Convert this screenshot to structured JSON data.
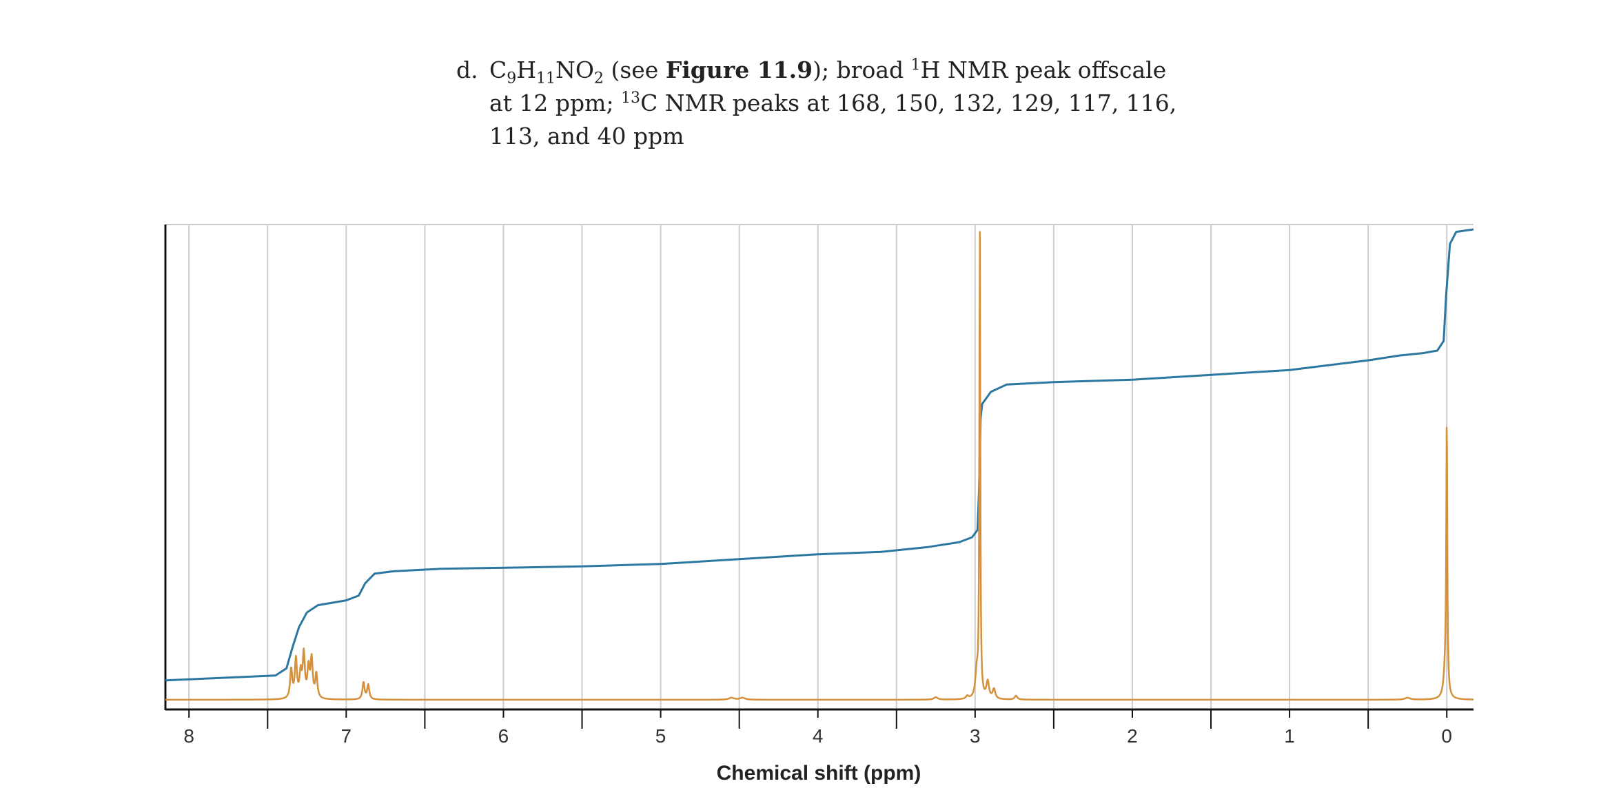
{
  "problem": {
    "marker": "d.",
    "text": {
      "c": "C",
      "c_sub": "9",
      "h": "H",
      "h_sub": "11",
      "no": "NO",
      "no_sub": "2",
      "see_open": " (see ",
      "figure_ref": "Figure 11.9",
      "after_ref": "); broad ",
      "h_mass": "1",
      "h_nmr": "H NMR peak offscale at 12 ppm; ",
      "c_mass": "13",
      "c_nmr": "C NMR peaks at 168, 150, 132, 129, 117, 116, 113, and 40 ppm"
    }
  },
  "chart_data": {
    "type": "line",
    "xlabel": "Chemical shift (ppm)",
    "ylabel": "",
    "xlim": [
      8.15,
      -0.17
    ],
    "x_reversed": true,
    "ylim": [
      0,
      1
    ],
    "grid": true,
    "major_ticks": [
      8,
      7,
      6,
      5,
      4,
      3,
      2,
      1,
      0
    ],
    "tick_labels": [
      "8",
      "7",
      "6",
      "5",
      "4",
      "3",
      "2",
      "1",
      "0"
    ],
    "minor_ticks": [
      7.5,
      6.5,
      5.5,
      4.5,
      3.5,
      2.5,
      1.5,
      0.5
    ],
    "colors": {
      "spectrum": "#d4903a",
      "integral": "#2b77a0",
      "grid": "#cccccc",
      "axis": "#111111"
    },
    "series": [
      {
        "role": "spectrum",
        "baseline": 0.02,
        "peaks": [
          {
            "ppm": 7.35,
            "height": 0.06,
            "width": 0.008
          },
          {
            "ppm": 7.32,
            "height": 0.08,
            "width": 0.008
          },
          {
            "ppm": 7.29,
            "height": 0.05,
            "width": 0.008
          },
          {
            "ppm": 7.27,
            "height": 0.09,
            "width": 0.008
          },
          {
            "ppm": 7.24,
            "height": 0.06,
            "width": 0.008
          },
          {
            "ppm": 7.22,
            "height": 0.08,
            "width": 0.008
          },
          {
            "ppm": 7.19,
            "height": 0.05,
            "width": 0.008
          },
          {
            "ppm": 6.89,
            "height": 0.035,
            "width": 0.008
          },
          {
            "ppm": 6.86,
            "height": 0.03,
            "width": 0.008
          },
          {
            "ppm": 4.55,
            "height": 0.004,
            "width": 0.02
          },
          {
            "ppm": 4.48,
            "height": 0.004,
            "width": 0.02
          },
          {
            "ppm": 3.25,
            "height": 0.005,
            "width": 0.015
          },
          {
            "ppm": 3.05,
            "height": 0.006,
            "width": 0.01
          },
          {
            "ppm": 2.97,
            "height": 0.96,
            "width": 0.0035
          },
          {
            "ppm": 2.99,
            "height": 0.05,
            "width": 0.01
          },
          {
            "ppm": 2.92,
            "height": 0.035,
            "width": 0.01
          },
          {
            "ppm": 2.88,
            "height": 0.02,
            "width": 0.01
          },
          {
            "ppm": 2.74,
            "height": 0.008,
            "width": 0.01
          },
          {
            "ppm": 0.25,
            "height": 0.004,
            "width": 0.02
          },
          {
            "ppm": 0.0,
            "height": 0.55,
            "width": 0.004
          },
          {
            "ppm": 0.01,
            "height": 0.05,
            "width": 0.012
          }
        ]
      },
      {
        "role": "integral",
        "points": [
          [
            8.15,
            0.06
          ],
          [
            7.45,
            0.07
          ],
          [
            7.38,
            0.085
          ],
          [
            7.34,
            0.13
          ],
          [
            7.3,
            0.17
          ],
          [
            7.25,
            0.2
          ],
          [
            7.18,
            0.215
          ],
          [
            7.0,
            0.225
          ],
          [
            6.92,
            0.235
          ],
          [
            6.88,
            0.26
          ],
          [
            6.82,
            0.28
          ],
          [
            6.7,
            0.285
          ],
          [
            6.4,
            0.29
          ],
          [
            5.5,
            0.295
          ],
          [
            5.0,
            0.3
          ],
          [
            4.5,
            0.31
          ],
          [
            4.0,
            0.32
          ],
          [
            3.6,
            0.325
          ],
          [
            3.3,
            0.335
          ],
          [
            3.1,
            0.345
          ],
          [
            3.02,
            0.355
          ],
          [
            2.985,
            0.37
          ],
          [
            2.975,
            0.45
          ],
          [
            2.965,
            0.6
          ],
          [
            2.955,
            0.63
          ],
          [
            2.9,
            0.655
          ],
          [
            2.8,
            0.67
          ],
          [
            2.5,
            0.675
          ],
          [
            2.0,
            0.68
          ],
          [
            1.5,
            0.69
          ],
          [
            1.0,
            0.7
          ],
          [
            0.5,
            0.72
          ],
          [
            0.3,
            0.73
          ],
          [
            0.15,
            0.735
          ],
          [
            0.06,
            0.74
          ],
          [
            0.02,
            0.76
          ],
          [
            0.005,
            0.85
          ],
          [
            -0.02,
            0.96
          ],
          [
            -0.06,
            0.985
          ],
          [
            -0.17,
            0.99
          ]
        ]
      }
    ]
  }
}
